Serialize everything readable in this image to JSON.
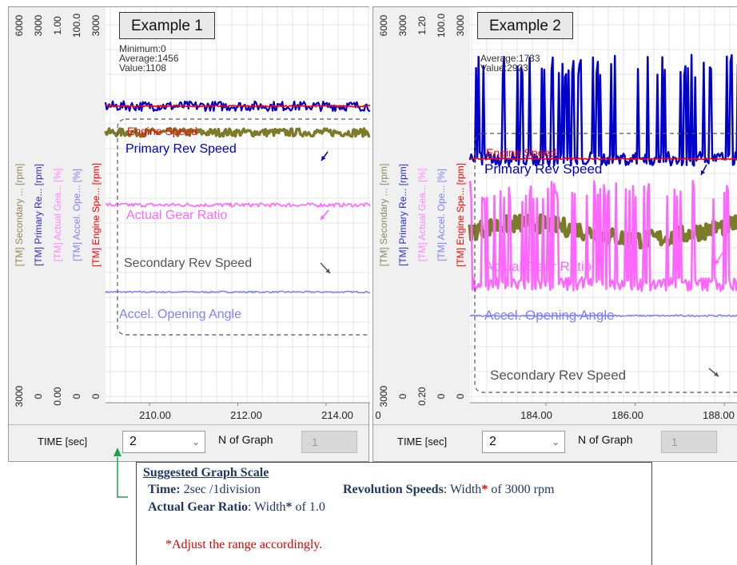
{
  "colors": {
    "engine_speed": "#ff0000",
    "primary_rev": "#0000cc",
    "actual_gear": "#ff66ff",
    "accel_opening": "#8080ff",
    "secondary_rev": "#7b7b2a",
    "note_text": "#1f3864",
    "note_red": "#e00000",
    "indicator_green": "#1aa34a"
  },
  "axis_titles": [
    {
      "text": "[TM] Secondary ... [rpm]",
      "color": "#8a8a5a"
    },
    {
      "text": "[TM] Primary Re... [rpm]",
      "color": "#2a2ad0"
    },
    {
      "text": "[TM] Actual Gea... [%]",
      "color": "#ff88ff"
    },
    {
      "text": "[TM] Accel. Ope... [%]",
      "color": "#8080ff"
    },
    {
      "text": "[TM] Engine Spe... [rpm]",
      "color": "#ff0000"
    }
  ],
  "example1": {
    "label": "Example 1",
    "stats": [
      "Minimum:0",
      "Average:1456",
      "Value:1108"
    ],
    "axis_tops": [
      "6000",
      "3000",
      "1.00",
      "100.0",
      "3000"
    ],
    "axis_bottoms": [
      "3000",
      "0",
      "0.00",
      "0",
      "0"
    ],
    "x_ticks": [
      "210.00",
      "212.00",
      "214.00"
    ],
    "time_label": "TIME [sec]",
    "time_value": "2",
    "ngraph_label": "N of Graph",
    "ngraph_value": "1",
    "legend": {
      "engine_speed": "Engine Speed",
      "primary_rev": "Primary Rev Speed",
      "actual_gear": "Actual Gear Ratio",
      "secondary_rev": "Secondary Rev Speed",
      "accel_opening": "Accel. Opening Angle"
    }
  },
  "example2": {
    "label": "Example 2",
    "stats": [
      "Average:1733",
      "Value:2923"
    ],
    "axis_tops": [
      "6000",
      "3000",
      "1.20",
      "100.0",
      "3000"
    ],
    "axis_bottoms": [
      "3000",
      "0",
      "0.20",
      "0",
      "0"
    ],
    "x_ticks": [
      "0",
      "184.00",
      "186.00",
      "188.00"
    ],
    "time_label": "TIME [sec]",
    "time_value": "2",
    "ngraph_label": "N of Graph",
    "ngraph_value": "1",
    "legend": {
      "engine_speed": "Engine Speed",
      "primary_rev": "Primary Rev Speed",
      "actual_gear": "Actual Gear Ratio",
      "accel_opening": "Accel. Opening Angle",
      "secondary_rev": "Secondary Rev Speed"
    }
  },
  "note": {
    "title": "Suggested Graph Scale",
    "time_key": "Time:",
    "time_val": " 2sec /1division",
    "rev_key": "Revolution Speeds",
    "rev_val": ": Width",
    "star": "*",
    "rev_tail": " of 3000 rpm",
    "gear_key": "Actual Gear Ratio",
    "gear_val": ": Width",
    "gear_tail": " of 1.0",
    "adjust": "*Adjust the range accordingly."
  },
  "chart_data": [
    {
      "type": "line",
      "title": "Example 1",
      "xlabel": "TIME [sec]",
      "x_ticks": [
        210.0,
        212.0,
        214.0
      ],
      "xlim": [
        209.0,
        215.0
      ],
      "grid": true,
      "series": [
        {
          "name": "Engine Speed",
          "axis": "[TM] Engine Spe... [rpm]",
          "ylim": [
            0,
            3000
          ],
          "approx_level": 2250,
          "pattern": "flat"
        },
        {
          "name": "Primary Rev Speed",
          "axis": "[TM] Primary Re... [rpm]",
          "ylim": [
            0,
            3000
          ],
          "approx_level": 2250,
          "pattern": "small noise"
        },
        {
          "name": "Actual Gear Ratio",
          "axis": "[TM] Actual Gea... [%]",
          "ylim": [
            0.0,
            1.0
          ],
          "approx_level": 0.5,
          "pattern": "low noise"
        },
        {
          "name": "Secondary Rev Speed",
          "axis": "[TM] Secondary ... [rpm]",
          "ylim": [
            3000,
            6000
          ],
          "approx_level": 5050,
          "pattern": "moderate noise"
        },
        {
          "name": "Accel. Opening Angle",
          "axis": "[TM] Accel. Ope... [%]",
          "ylim": [
            0,
            100.0
          ],
          "approx_level": 28,
          "pattern": "flat"
        }
      ]
    },
    {
      "type": "line",
      "title": "Example 2",
      "xlabel": "TIME [sec]",
      "x_ticks": [
        184.0,
        186.0,
        188.0
      ],
      "xlim": [
        182.3,
        188.3
      ],
      "grid": true,
      "series": [
        {
          "name": "Engine Speed",
          "axis": "[TM] Engine Spe... [rpm]",
          "ylim": [
            0,
            3000
          ],
          "approx_level": 1850,
          "pattern": "flat"
        },
        {
          "name": "Primary Rev Speed",
          "axis": "[TM] Primary Re... [rpm]",
          "ylim": [
            0,
            3000
          ],
          "approx_level": 1850,
          "pattern": "large spikes"
        },
        {
          "name": "Actual Gear Ratio",
          "axis": "[TM] Actual Gea... [%]",
          "ylim": [
            0.2,
            1.2
          ],
          "approx_level": 0.5,
          "pattern": "large spikes"
        },
        {
          "name": "Accel. Opening Angle",
          "axis": "[TM] Accel. Ope... [%]",
          "ylim": [
            0,
            100.0
          ],
          "approx_level": 22,
          "pattern": "flat"
        },
        {
          "name": "Secondary Rev Speed",
          "axis": "[TM] Secondary ... [rpm]",
          "ylim": [
            3000,
            6000
          ],
          "approx_level": 4300,
          "pattern": "heavy noise"
        }
      ]
    }
  ]
}
